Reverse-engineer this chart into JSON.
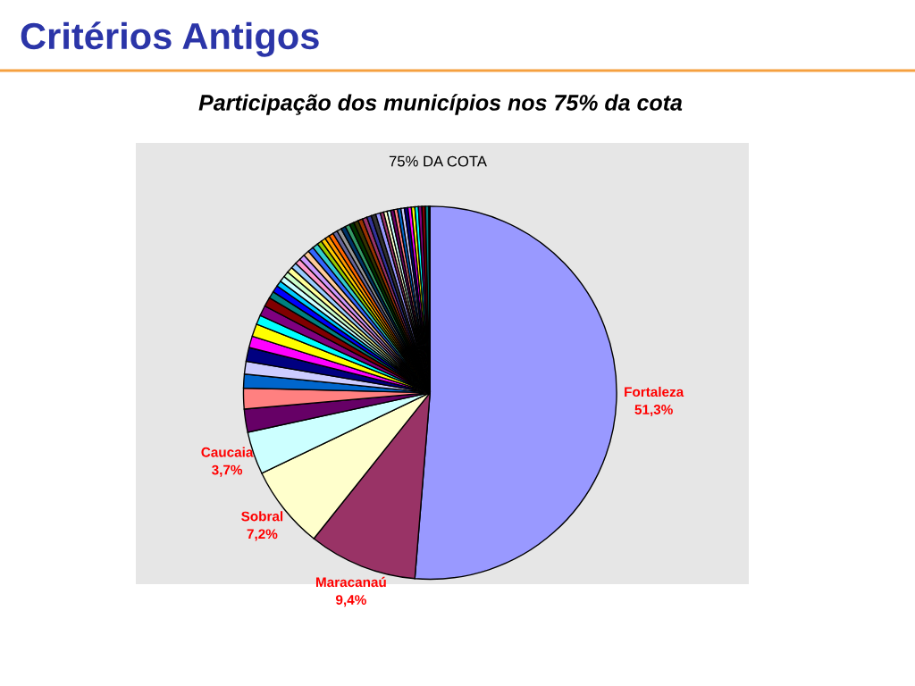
{
  "chart_data": {
    "type": "pie",
    "title": "Critérios Antigos",
    "subtitle": "Participação dos municípios nos 75% da cota",
    "annotations": [
      "75% DA COTA"
    ],
    "categories": [
      "Fortaleza",
      "Maracanaú",
      "Sobral",
      "Caucaia",
      null,
      null,
      null,
      null,
      null,
      null,
      null,
      null,
      null,
      null,
      null,
      null,
      null,
      null,
      null,
      null,
      null,
      null,
      null,
      null,
      null,
      null,
      null,
      null,
      null,
      null,
      null,
      null,
      null,
      null,
      null,
      null,
      null,
      null,
      null,
      null,
      null,
      null,
      null,
      null,
      null,
      null,
      null,
      null,
      null,
      null,
      null,
      null,
      null,
      null,
      null,
      null
    ],
    "values": [
      51.3,
      9.4,
      7.2,
      3.7,
      2.0,
      1.8,
      1.2,
      1.1,
      1.2,
      1.0,
      1.1,
      0.8,
      0.9,
      0.8,
      0.6,
      0.6,
      0.5,
      0.5,
      0.5,
      0.5,
      0.5,
      0.5,
      0.5,
      0.5,
      0.5,
      0.5,
      0.4,
      0.4,
      0.4,
      0.4,
      0.4,
      0.4,
      0.4,
      0.4,
      0.4,
      0.4,
      0.4,
      0.4,
      0.4,
      0.4,
      0.4,
      0.3,
      0.3,
      0.3,
      0.3,
      0.3,
      0.3,
      0.3,
      0.3,
      0.3,
      0.3,
      0.3,
      0.3,
      0.3,
      0.3,
      0.1
    ],
    "value_labels": [
      "51,3%",
      "9,4%",
      "7,2%",
      "3,7%",
      null,
      null,
      null,
      null,
      null,
      null,
      null,
      null,
      null,
      null,
      null,
      null,
      null,
      null,
      null,
      null,
      null,
      null,
      null,
      null,
      null,
      null,
      null,
      null,
      null,
      null,
      null,
      null,
      null,
      null,
      null,
      null,
      null,
      null,
      null,
      null,
      null,
      null,
      null,
      null,
      null,
      null,
      null,
      null,
      null,
      null,
      null,
      null,
      null,
      null,
      null,
      null
    ],
    "colors": [
      "#9999ff",
      "#993366",
      "#ffffcc",
      "#ccffff",
      "#660066",
      "#ff8080",
      "#0066cc",
      "#ccccff",
      "#000080",
      "#ff00ff",
      "#ffff00",
      "#00ffff",
      "#800080",
      "#800000",
      "#008080",
      "#0000ff",
      "#00ccff",
      "#ccffff",
      "#ccffcc",
      "#ffff99",
      "#99ccff",
      "#ff99cc",
      "#cc99ff",
      "#ffcc99",
      "#3366ff",
      "#33cccc",
      "#99cc00",
      "#ffcc00",
      "#ff9900",
      "#ff6600",
      "#666699",
      "#969696",
      "#003366",
      "#339966",
      "#003300",
      "#333300",
      "#993300",
      "#993366",
      "#333399",
      "#333333",
      "#9999ff",
      "#993366",
      "#ffffcc",
      "#ccffff",
      "#660066",
      "#ff8080",
      "#0066cc",
      "#ccccff",
      "#000080",
      "#ff00ff",
      "#ffff00",
      "#00ffff",
      "#800080",
      "#800000",
      "#008080",
      "#0000ff"
    ],
    "legend": false
  }
}
